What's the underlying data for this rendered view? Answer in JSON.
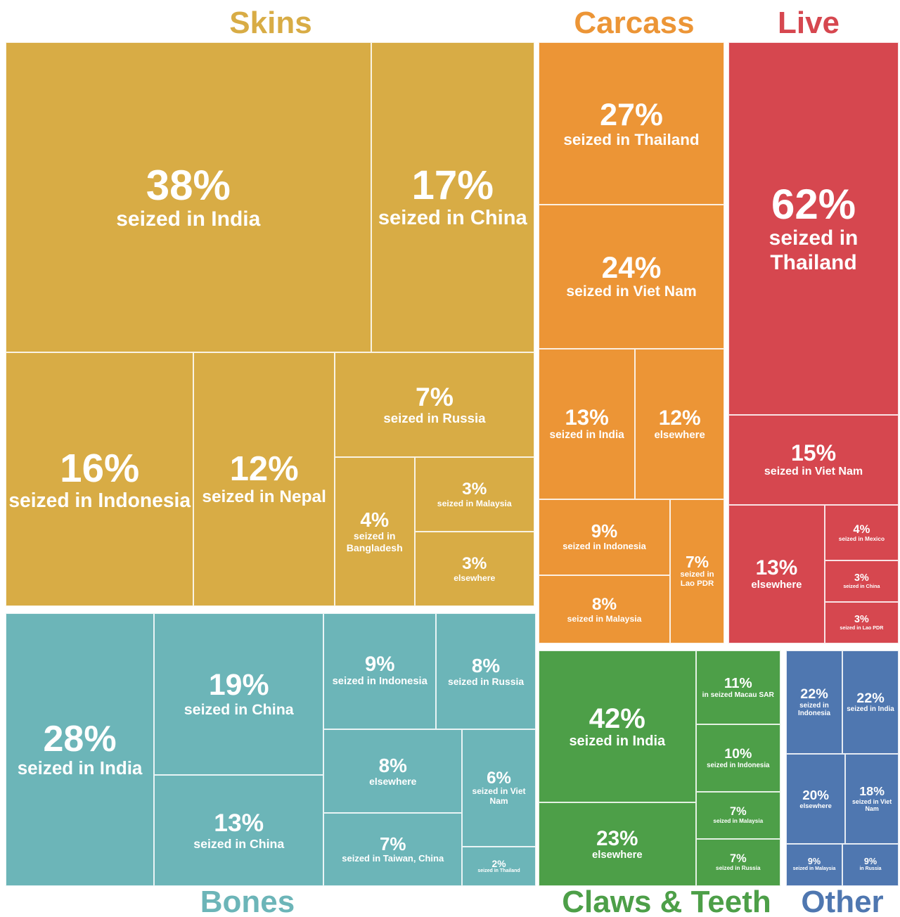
{
  "chart_data": {
    "type": "treemap",
    "groups": [
      {
        "name": "Skins",
        "color": "#d8ac45",
        "values": [
          38,
          17,
          16,
          12,
          7,
          4,
          3,
          3
        ],
        "value_labels": [
          "38%",
          "17%",
          "16%",
          "12%",
          "7%",
          "4%",
          "3%",
          "3%"
        ],
        "labels": [
          "seized in India",
          "seized in China",
          "seized in Indonesia",
          "seized in Nepal",
          "seized in Russia",
          "seized in Bangladesh",
          "seized in Malaysia",
          "elsewhere"
        ]
      },
      {
        "name": "Carcass",
        "color": "#ec9536",
        "values": [
          27,
          24,
          13,
          12,
          9,
          8,
          7
        ],
        "value_labels": [
          "27%",
          "24%",
          "13%",
          "12%",
          "9%",
          "8%",
          "7%"
        ],
        "labels": [
          "seized in Thailand",
          "seized in Viet Nam",
          "seized in India",
          "elsewhere",
          "seized in Indonesia",
          "seized in Malaysia",
          "seized in Lao PDR"
        ]
      },
      {
        "name": "Live",
        "color": "#d6474f",
        "values": [
          62,
          15,
          13,
          4,
          3,
          3
        ],
        "value_labels": [
          "62%",
          "15%",
          "13%",
          "4%",
          "3%",
          "3%"
        ],
        "labels": [
          "seized in Thailand",
          "seized in Viet Nam",
          "elsewhere",
          "seized in Mexico",
          "seized in China",
          "seized in Lao PDR"
        ]
      },
      {
        "name": "Bones",
        "color": "#6cb5b8",
        "values": [
          28,
          19,
          13,
          9,
          8,
          8,
          7,
          6,
          2
        ],
        "value_labels": [
          "28%",
          "19%",
          "13%",
          "9%",
          "8%",
          "8%",
          "7%",
          "6%",
          "2%"
        ],
        "labels": [
          "seized in India",
          "seized in China",
          "seized in China",
          "seized in Indonesia",
          "seized in Russia",
          "elsewhere",
          "seized in Taiwan, China",
          "seized in Viet Nam",
          "seized in Thailand"
        ]
      },
      {
        "name": "Claws & Teeth",
        "color": "#4d9f48",
        "values": [
          42,
          23,
          11,
          10,
          7,
          7
        ],
        "value_labels": [
          "42%",
          "23%",
          "11%",
          "10%",
          "7%",
          "7%"
        ],
        "labels": [
          "seized in India",
          "elsewhere",
          "in seized Macau SAR",
          "seized in Indonesia",
          "seized in Malaysia",
          "seized in Russia"
        ]
      },
      {
        "name": "Other",
        "color": "#4f77b0",
        "values": [
          22,
          22,
          20,
          18,
          9,
          9
        ],
        "value_labels": [
          "22%",
          "22%",
          "20%",
          "18%",
          "9%",
          "9%"
        ],
        "labels": [
          "seized in Indonesia",
          "seized in India",
          "elsewhere",
          "seized in Viet Nam",
          "seized in Malaysia",
          "in Russia"
        ]
      }
    ]
  }
}
